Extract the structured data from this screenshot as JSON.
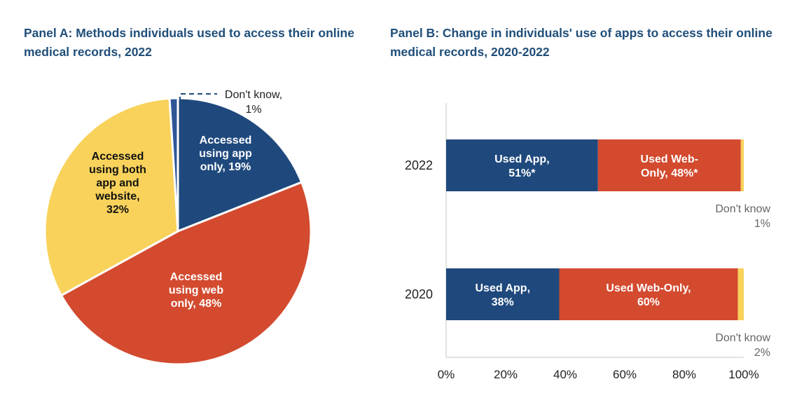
{
  "colors": {
    "app": "#1f497d",
    "web": "#d34a2f",
    "both": "#f8d25a",
    "dont_know": "#2f5597",
    "dont_know_bar": "#f8d25a",
    "title": "#1f4e79"
  },
  "chart_data": [
    {
      "type": "pie",
      "title": "Panel A: Methods individuals used to access their online medical records, 2022",
      "slices": [
        {
          "key": "app",
          "label_lines": [
            "Accessed",
            "using app",
            "only, 19%"
          ],
          "value": 19,
          "color": "#1f497d",
          "label_class": "lbl-white"
        },
        {
          "key": "web",
          "label_lines": [
            "Accessed",
            "using web",
            "only, 48%"
          ],
          "value": 48,
          "color": "#d34a2f",
          "label_class": "lbl-white"
        },
        {
          "key": "both",
          "label_lines": [
            "Accessed",
            "using both",
            "app and",
            "website,",
            "32%"
          ],
          "value": 32,
          "color": "#f8d25a",
          "label_class": "lbl-dark"
        },
        {
          "key": "dont_know",
          "label_lines": [
            "Don't know,",
            "1%"
          ],
          "value": 1,
          "color": "#2f5597",
          "label_class": "lbl-plain"
        }
      ]
    },
    {
      "type": "bar",
      "orientation": "horizontal",
      "stacked": true,
      "title": "Panel B: Change in individuals' use of apps to access their online medical records, 2020-2022",
      "categories": [
        "2022",
        "2020"
      ],
      "xlim": [
        0,
        100
      ],
      "xticks": [
        "0%",
        "20%",
        "40%",
        "60%",
        "80%",
        "100%"
      ],
      "series": [
        {
          "name": "Used App",
          "values": [
            51,
            38
          ],
          "color": "#1f497d"
        },
        {
          "name": "Used Web-Only",
          "values": [
            48,
            60
          ],
          "color": "#d34a2f"
        },
        {
          "name": "Don't know",
          "values": [
            1,
            2
          ],
          "color": "#f8d25a"
        }
      ],
      "bar_labels": [
        {
          "app": [
            "Used App,",
            "51%*"
          ],
          "web": [
            "Used Web-",
            "Only, 48%*"
          ],
          "dk": [
            "Don't know",
            "1%"
          ]
        },
        {
          "app": [
            "Used App,",
            "38%"
          ],
          "web": [
            "Used Web-Only,",
            "60%"
          ],
          "dk": [
            "Don't know",
            "2%"
          ]
        }
      ]
    }
  ]
}
